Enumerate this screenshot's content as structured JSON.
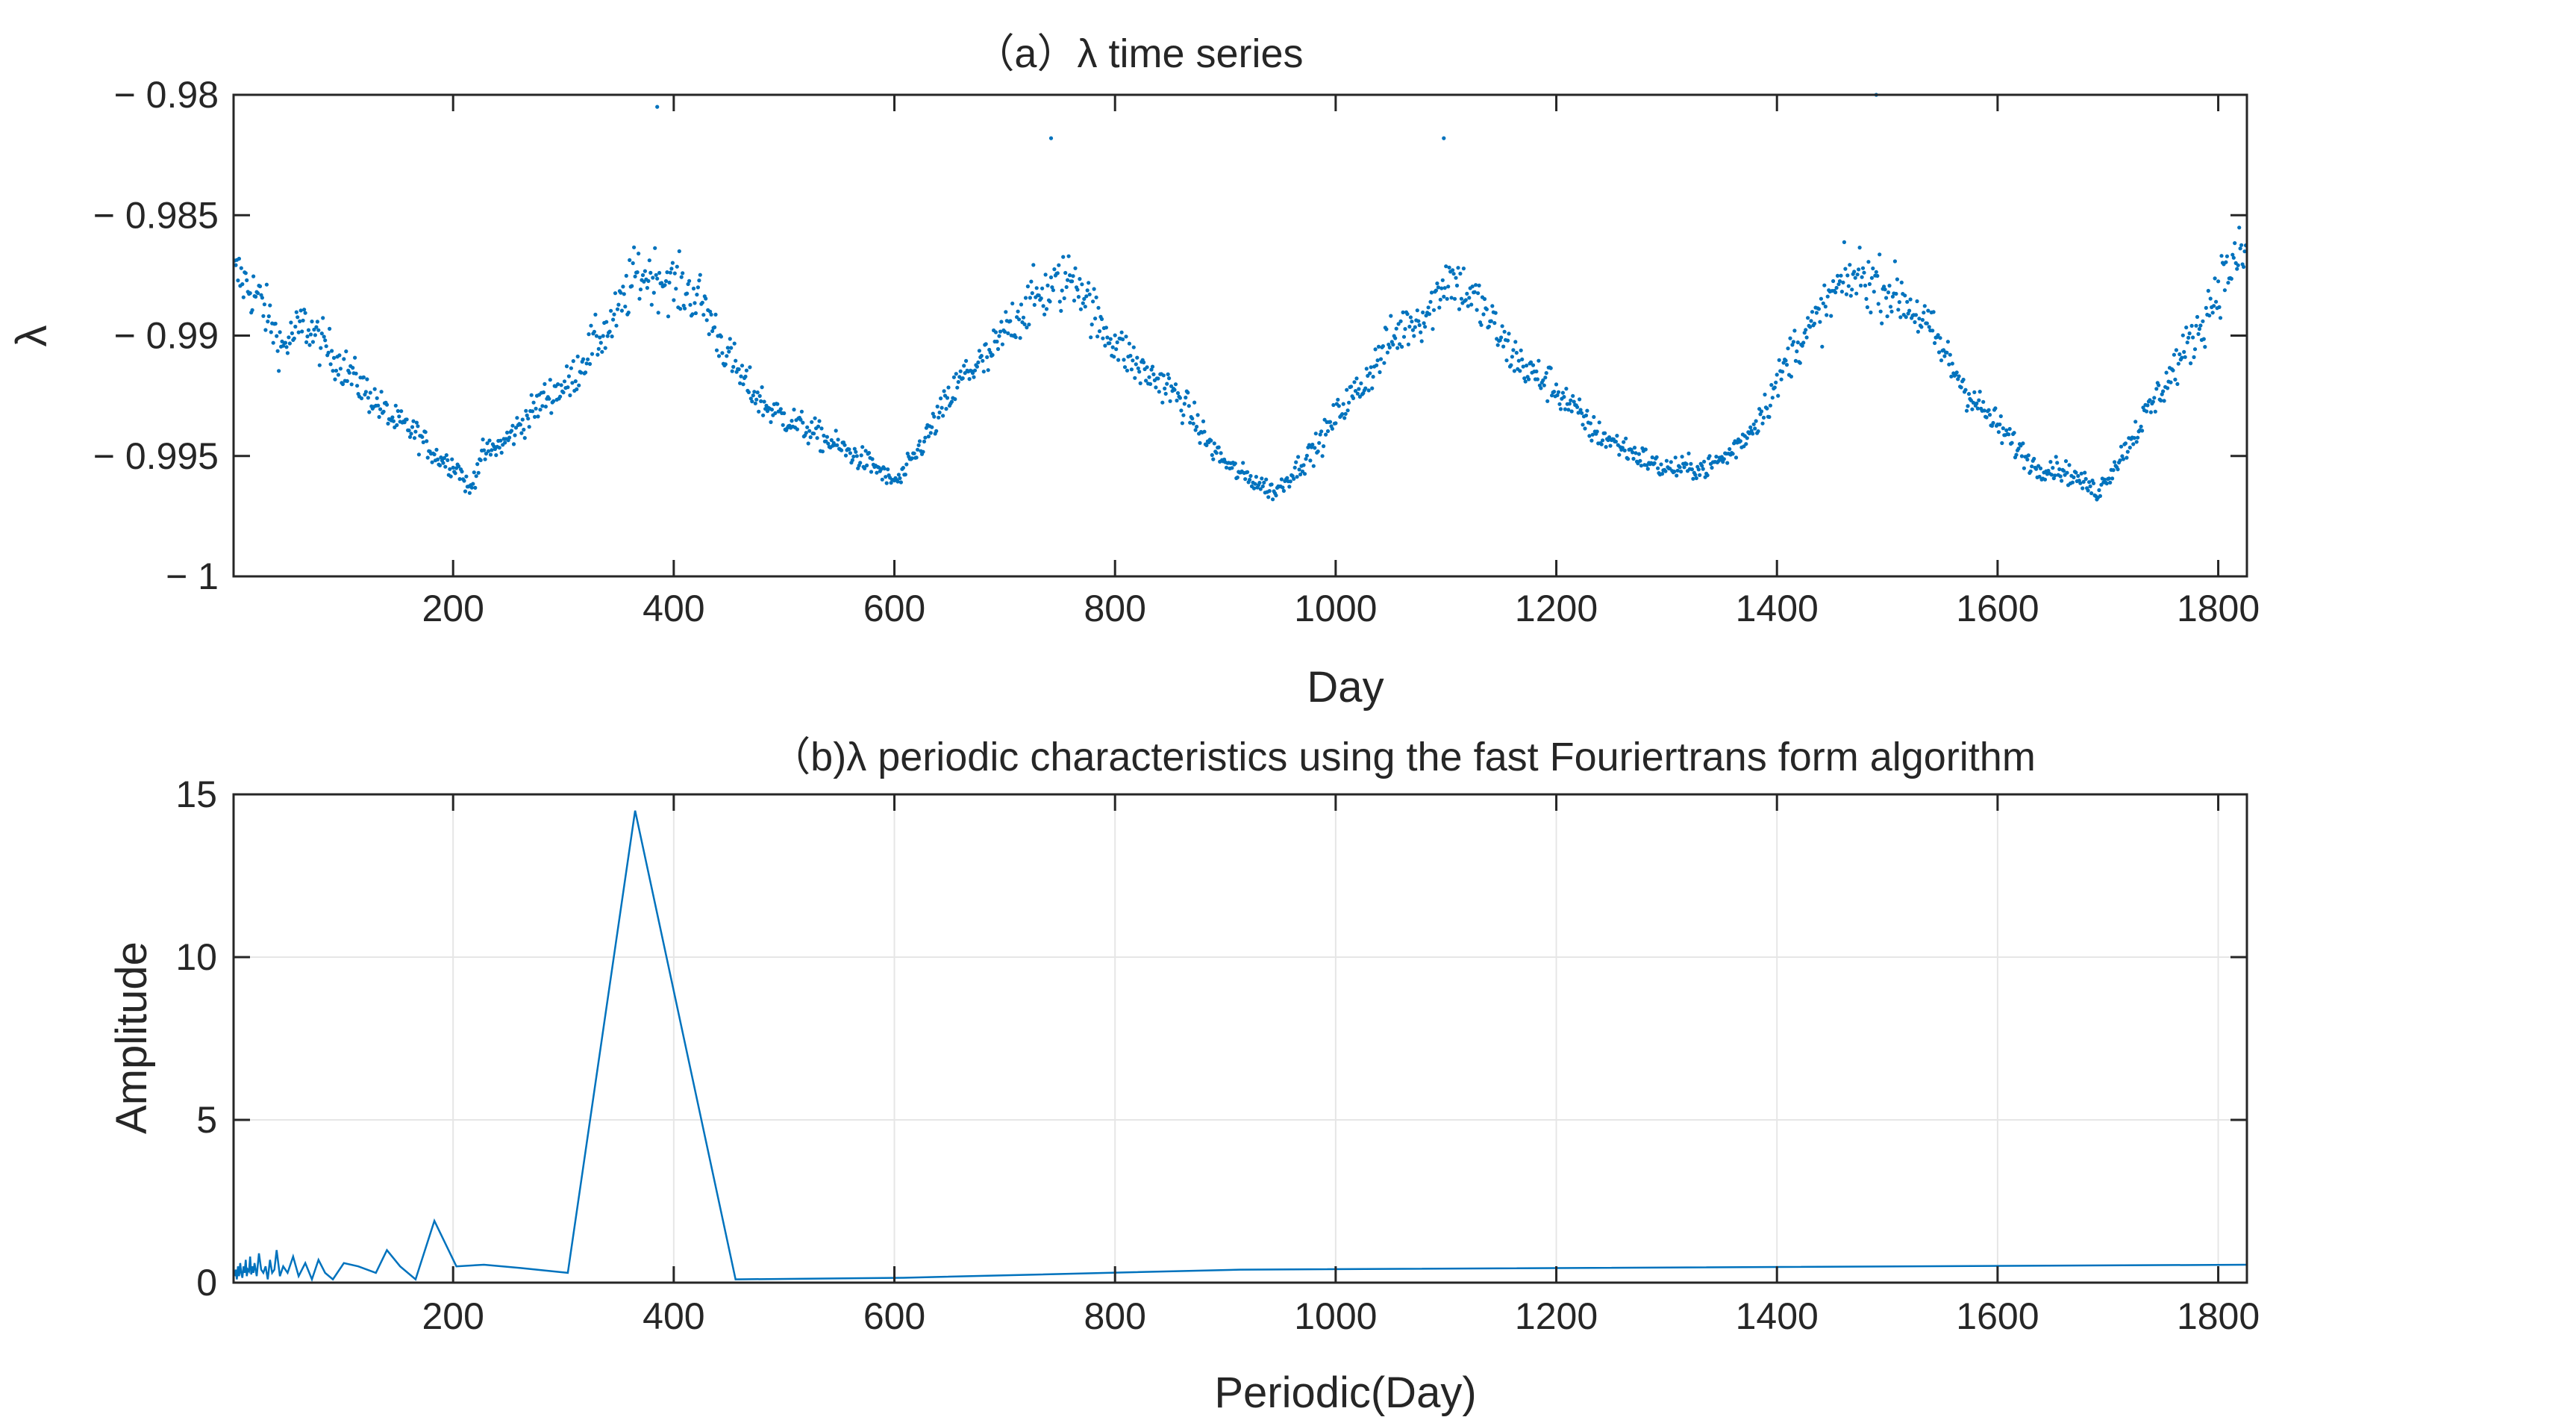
{
  "chart_data": [
    {
      "type": "scatter",
      "title": "（a）λ time series",
      "xlabel": "Day",
      "ylabel": "λ",
      "xlim": [
        1,
        1826
      ],
      "ylim": [
        -1,
        -0.98
      ],
      "grid": false,
      "xticks": [
        200,
        400,
        600,
        800,
        1000,
        1200,
        1400,
        1600,
        1800
      ],
      "xtick_labels": [
        "200",
        "400",
        "600",
        "800",
        "1000",
        "1200",
        "1400",
        "1600",
        "1800"
      ],
      "yticks": [
        -0.98,
        -0.985,
        -0.99,
        -0.995,
        -1
      ],
      "ytick_labels": [
        "− 0.98",
        "− 0.985",
        "− 0.99",
        "− 0.995",
        "− 1"
      ],
      "marker_color": "#0072BD",
      "series": [
        {
          "values_note": "",
          "x": [
            5,
            25,
            45,
            65,
            85,
            105,
            125,
            145,
            165,
            185,
            205,
            215,
            225,
            245,
            265,
            285,
            305,
            325,
            345,
            365,
            385,
            405,
            425,
            445,
            465,
            485,
            505,
            525,
            545,
            565,
            585,
            595,
            605,
            625,
            645,
            665,
            685,
            705,
            725,
            745,
            765,
            785,
            805,
            825,
            845,
            865,
            885,
            905,
            925,
            945,
            965,
            985,
            1005,
            1025,
            1045,
            1065,
            1085,
            1100,
            1115,
            1135,
            1155,
            1175,
            1195,
            1215,
            1235,
            1255,
            1275,
            1295,
            1315,
            1335,
            1355,
            1375,
            1395,
            1415,
            1435,
            1455,
            1475,
            1495,
            1515,
            1535,
            1555,
            1575,
            1595,
            1615,
            1635,
            1655,
            1675,
            1690,
            1705,
            1725,
            1745,
            1765,
            1785,
            1805,
            1825
          ],
          "y": [
            -0.9875,
            -0.9885,
            -0.9905,
            -0.9895,
            -0.9905,
            -0.9915,
            -0.9925,
            -0.9935,
            -0.994,
            -0.995,
            -0.9955,
            -0.9965,
            -0.995,
            -0.9945,
            -0.9935,
            -0.9925,
            -0.992,
            -0.9905,
            -0.9895,
            -0.9875,
            -0.9875,
            -0.988,
            -0.9885,
            -0.9905,
            -0.992,
            -0.993,
            -0.9935,
            -0.994,
            -0.9945,
            -0.995,
            -0.9955,
            -0.996,
            -0.996,
            -0.9945,
            -0.993,
            -0.9915,
            -0.991,
            -0.9895,
            -0.9885,
            -0.988,
            -0.9875,
            -0.9895,
            -0.9905,
            -0.9915,
            -0.992,
            -0.993,
            -0.9945,
            -0.9955,
            -0.996,
            -0.9965,
            -0.9955,
            -0.9945,
            -0.993,
            -0.992,
            -0.9905,
            -0.9895,
            -0.989,
            -0.9875,
            -0.988,
            -0.989,
            -0.9905,
            -0.9915,
            -0.992,
            -0.993,
            -0.994,
            -0.9945,
            -0.995,
            -0.9955,
            -0.9955,
            -0.9955,
            -0.995,
            -0.994,
            -0.9925,
            -0.9905,
            -0.9895,
            -0.988,
            -0.9875,
            -0.988,
            -0.9885,
            -0.9895,
            -0.991,
            -0.9925,
            -0.9935,
            -0.9945,
            -0.9955,
            -0.9955,
            -0.996,
            -0.9965,
            -0.9955,
            -0.994,
            -0.9925,
            -0.991,
            -0.9895,
            -0.9875,
            -0.9865
          ]
        }
      ],
      "peaks": [
        {
          "x": 385,
          "y": -0.9805
        },
        {
          "x": 1490,
          "y": -0.98
        },
        {
          "x": 742,
          "y": -0.9818
        },
        {
          "x": 1098,
          "y": -0.9818
        }
      ]
    },
    {
      "type": "line",
      "title": "（b)λ periodic characteristics using the fast Fouriertrans form algorithm",
      "xlabel": "Periodic(Day)",
      "ylabel": "Amplitude",
      "xlim": [
        1,
        1826
      ],
      "ylim": [
        0,
        15
      ],
      "grid": true,
      "xticks": [
        200,
        400,
        600,
        800,
        1000,
        1200,
        1400,
        1600,
        1800
      ],
      "xtick_labels": [
        "200",
        "400",
        "600",
        "800",
        "1000",
        "1200",
        "1400",
        "1600",
        "1800"
      ],
      "yticks": [
        0,
        5,
        10,
        15
      ],
      "ytick_labels": [
        "0",
        "5",
        "10",
        "15"
      ],
      "line_color": "#0072BD",
      "series": [
        {
          "x": [
            2,
            3,
            4,
            5,
            6,
            7,
            8,
            9,
            10,
            11,
            12,
            13,
            14,
            15,
            16,
            17,
            18,
            19,
            20,
            22,
            24,
            26,
            28,
            30,
            32,
            34,
            36,
            38,
            40,
            43,
            46,
            50,
            55,
            60,
            66,
            72,
            78,
            84,
            91,
            101,
            114,
            130,
            140,
            152,
            166,
            183,
            203,
            228,
            261,
            304,
            365,
            456,
            608,
            913,
            1826
          ],
          "y": [
            0.2,
            0.4,
            0.1,
            0.5,
            0.2,
            0.6,
            0.3,
            0.15,
            0.5,
            0.3,
            0.7,
            0.2,
            0.4,
            0.35,
            0.8,
            0.25,
            0.5,
            0.3,
            0.6,
            0.2,
            0.9,
            0.4,
            0.3,
            0.5,
            0.1,
            0.7,
            0.3,
            0.4,
            1.0,
            0.2,
            0.5,
            0.3,
            0.8,
            0.2,
            0.6,
            0.1,
            0.7,
            0.3,
            0.1,
            0.6,
            0.5,
            0.3,
            1.0,
            0.5,
            0.1,
            1.9,
            0.5,
            0.55,
            0.45,
            0.3,
            14.5,
            0.1,
            0.15,
            0.4,
            0.55
          ]
        }
      ]
    }
  ]
}
